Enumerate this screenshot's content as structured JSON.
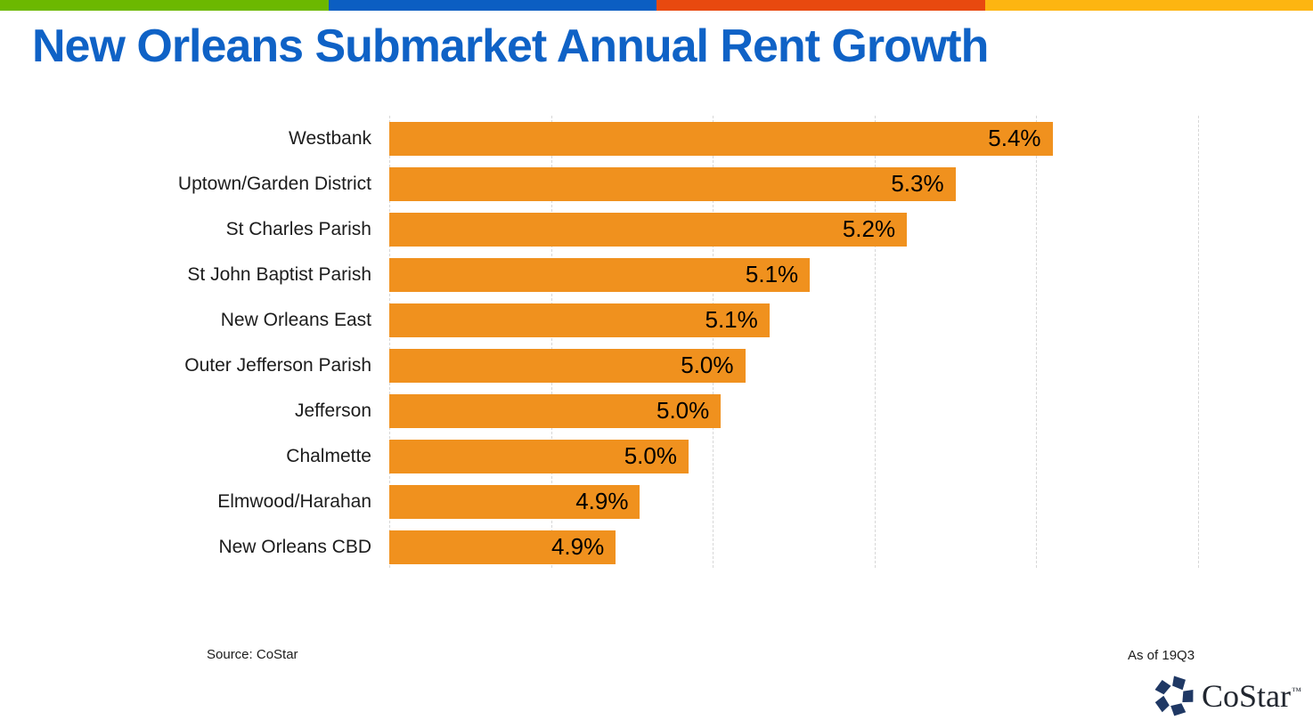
{
  "top_bar": {
    "colors": [
      "#6CB800",
      "#0B5EC2",
      "#E8490F",
      "#FDB511"
    ]
  },
  "theme": {
    "title_color": "#0F62C6",
    "gridline_color": "#D7D7D7"
  },
  "chart_data": {
    "type": "bar",
    "orientation": "horizontal",
    "title": "New Orleans Submarket Annual Rent Growth",
    "categories": [
      "Westbank",
      "Uptown/Garden District",
      "St Charles Parish",
      "St John Baptist Parish",
      "New Orleans East",
      "Outer Jefferson Parish",
      "Jefferson",
      "Chalmette",
      "Elmwood/Harahan",
      "New Orleans CBD"
    ],
    "values": [
      5.4,
      5.3,
      5.2,
      5.1,
      5.1,
      5.0,
      5.0,
      5.0,
      4.9,
      4.9
    ],
    "value_labels": [
      "5.4%",
      "5.3%",
      "5.2%",
      "5.1%",
      "5.1%",
      "5.0%",
      "5.0%",
      "5.0%",
      "4.9%",
      "4.9%"
    ],
    "bar_lengths_estimated": [
      5.42,
      5.3,
      5.24,
      5.12,
      5.07,
      5.04,
      5.01,
      4.97,
      4.91,
      4.88
    ],
    "xlim": [
      4.6,
      5.6
    ],
    "gridline_step": 0.2,
    "grid": true,
    "x_tick_labels_shown": false,
    "legend": "none",
    "bar_color": "#F0911E",
    "xlabel": "",
    "ylabel": ""
  },
  "footer": {
    "source": "Source: CoStar",
    "as_of": "As of 19Q3",
    "logo_text": "CoStar",
    "logo_tm": "™"
  }
}
